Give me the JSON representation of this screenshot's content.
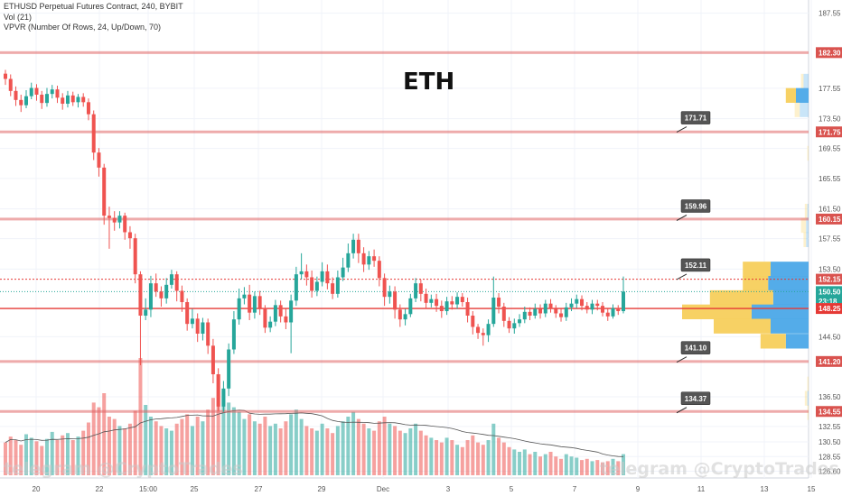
{
  "legend": {
    "symbol_line": "ETHUSD Perpetual Futures Contract, 240, BYBIT",
    "vol_line": "Vol (21)",
    "vpvr_line": "VPVR (Number Of Rows, 24, Up/Down, 70)"
  },
  "title_text": "ETH",
  "watermark": {
    "left_text": "telegram @CryptoTrades",
    "right_text": "telegram @CryptoTrades"
  },
  "colors": {
    "up": "#26a69a",
    "down": "#ef5350",
    "level_line": "#e06666",
    "current_line": "#e53935",
    "vpvr_up": "#4ba8e8",
    "vpvr_down": "#f7cf5c",
    "axis_text": "#555555",
    "grid": "#f0f3fa"
  },
  "y_axis": {
    "ticks": [
      "187.55",
      "177.55",
      "173.50",
      "169.55",
      "165.55",
      "161.50",
      "157.55",
      "153.50",
      "144.50",
      "136.50",
      "132.55",
      "130.50",
      "128.55",
      "126.60"
    ],
    "tick_values": [
      187.55,
      177.55,
      173.5,
      169.55,
      165.55,
      161.5,
      157.55,
      153.5,
      144.5,
      136.5,
      132.55,
      130.5,
      128.55,
      126.6
    ]
  },
  "x_axis": {
    "labels": [
      "20",
      "22",
      "15:00",
      "25",
      "27",
      "29",
      "Dec",
      "3",
      "5",
      "7",
      "9",
      "11",
      "13",
      "15"
    ]
  },
  "price_badges": [
    {
      "text": "182.30",
      "value": 182.3,
      "style": "level"
    },
    {
      "text": "171.75",
      "value": 171.75,
      "style": "level"
    },
    {
      "text": "160.15",
      "value": 160.15,
      "style": "level"
    },
    {
      "text": "152.15",
      "value": 152.15,
      "style": "level"
    },
    {
      "text": "150.50",
      "value": 150.5,
      "style": "current"
    },
    {
      "text": "23:18",
      "value": 149.25,
      "style": "current"
    },
    {
      "text": "148.25",
      "value": 148.25,
      "style": "red"
    },
    {
      "text": "141.20",
      "value": 141.2,
      "style": "level"
    },
    {
      "text": "134.55",
      "value": 134.55,
      "style": "level"
    }
  ],
  "callouts": [
    {
      "text": "171.71",
      "value": 171.71
    },
    {
      "text": "159.96",
      "value": 159.96
    },
    {
      "text": "152.11",
      "value": 152.11
    },
    {
      "text": "141.10",
      "value": 141.1
    },
    {
      "text": "134.37",
      "value": 134.37
    }
  ],
  "chart_data": {
    "type": "candlestick",
    "ylim": [
      125.7,
      189.3
    ],
    "horizontal_levels": [
      182.3,
      171.75,
      160.15,
      152.15,
      141.2,
      134.55
    ],
    "current_price": 150.5,
    "red_level": 148.25,
    "candles": [
      [
        179.5,
        178.8,
        180.0,
        178.0
      ],
      [
        178.8,
        177.2,
        179.4,
        176.5
      ],
      [
        177.2,
        176.0,
        177.8,
        175.2
      ],
      [
        176.0,
        175.3,
        176.7,
        174.4
      ],
      [
        175.3,
        176.5,
        177.3,
        174.9
      ],
      [
        176.5,
        177.6,
        178.3,
        176.1
      ],
      [
        177.6,
        176.7,
        178.1,
        175.9
      ],
      [
        176.7,
        175.6,
        177.2,
        174.8
      ],
      [
        175.6,
        176.8,
        177.6,
        175.1
      ],
      [
        176.8,
        177.4,
        178.0,
        176.2
      ],
      [
        177.4,
        176.3,
        177.9,
        175.6
      ],
      [
        176.3,
        175.5,
        176.9,
        174.7
      ],
      [
        175.5,
        176.6,
        177.2,
        175.0
      ],
      [
        176.6,
        175.7,
        177.1,
        175.2
      ],
      [
        175.7,
        176.4,
        176.8,
        175.0
      ],
      [
        176.4,
        175.7,
        176.9,
        175.1
      ],
      [
        175.7,
        174.1,
        176.2,
        173.3
      ],
      [
        174.1,
        169.0,
        174.6,
        168.0
      ],
      [
        169.0,
        167.0,
        169.6,
        165.8
      ],
      [
        167.0,
        160.6,
        167.5,
        159.4
      ],
      [
        160.6,
        160.3,
        161.8,
        156.2
      ],
      [
        160.3,
        159.7,
        161.2,
        158.6
      ],
      [
        159.7,
        160.6,
        161.2,
        158.9
      ],
      [
        160.6,
        158.4,
        161.0,
        157.4
      ],
      [
        158.4,
        157.6,
        159.2,
        156.2
      ],
      [
        157.6,
        152.8,
        158.2,
        151.6
      ],
      [
        152.8,
        147.3,
        153.2,
        140.7
      ],
      [
        147.3,
        148.1,
        149.6,
        146.7
      ],
      [
        148.1,
        151.6,
        152.6,
        147.1
      ],
      [
        151.6,
        150.5,
        152.9,
        149.8
      ],
      [
        150.5,
        149.6,
        151.2,
        148.5
      ],
      [
        149.6,
        151.4,
        152.3,
        148.9
      ],
      [
        151.4,
        152.8,
        153.4,
        150.9
      ],
      [
        152.8,
        150.6,
        153.2,
        149.2
      ],
      [
        150.6,
        149.1,
        151.3,
        147.8
      ],
      [
        149.1,
        146.2,
        149.6,
        145.3
      ],
      [
        146.2,
        146.9,
        148.2,
        145.6
      ],
      [
        146.9,
        144.9,
        147.6,
        143.8
      ],
      [
        144.9,
        146.4,
        147.0,
        144.0
      ],
      [
        146.4,
        143.3,
        146.9,
        142.2
      ],
      [
        143.3,
        139.5,
        144.2,
        138.3
      ],
      [
        139.5,
        135.2,
        140.3,
        134.6
      ],
      [
        135.2,
        137.6,
        138.6,
        134.5
      ],
      [
        137.6,
        142.8,
        143.6,
        136.6
      ],
      [
        142.8,
        146.8,
        147.9,
        142.2
      ],
      [
        146.8,
        149.6,
        150.9,
        146.1
      ],
      [
        149.6,
        150.1,
        151.1,
        148.8
      ],
      [
        150.1,
        147.7,
        151.4,
        146.7
      ],
      [
        147.7,
        149.9,
        150.5,
        146.9
      ],
      [
        149.9,
        148.3,
        150.6,
        147.4
      ],
      [
        148.3,
        145.7,
        148.7,
        145.0
      ],
      [
        145.7,
        146.5,
        147.2,
        145.1
      ],
      [
        146.5,
        148.7,
        149.4,
        145.9
      ],
      [
        148.7,
        147.2,
        149.3,
        146.4
      ],
      [
        147.2,
        146.4,
        148.2,
        145.5
      ],
      [
        146.4,
        149.3,
        150.1,
        142.3
      ],
      [
        149.3,
        152.8,
        153.8,
        148.6
      ],
      [
        152.8,
        153.2,
        155.6,
        152.1
      ],
      [
        153.2,
        152.4,
        154.1,
        151.3
      ],
      [
        152.4,
        150.6,
        153.3,
        149.7
      ],
      [
        150.6,
        151.8,
        152.5,
        149.9
      ],
      [
        151.8,
        153.2,
        154.4,
        151.2
      ],
      [
        153.2,
        151.6,
        154.1,
        150.8
      ],
      [
        151.6,
        150.2,
        152.4,
        149.5
      ],
      [
        150.2,
        152.4,
        153.3,
        149.7
      ],
      [
        152.4,
        153.7,
        155.0,
        151.9
      ],
      [
        153.7,
        155.6,
        156.9,
        153.1
      ],
      [
        155.6,
        157.4,
        158.2,
        154.9
      ],
      [
        157.4,
        155.6,
        158.2,
        154.3
      ],
      [
        155.6,
        154.1,
        156.4,
        153.1
      ],
      [
        154.1,
        155.2,
        155.9,
        153.4
      ],
      [
        155.2,
        154.6,
        156.1,
        153.8
      ],
      [
        154.6,
        152.3,
        155.2,
        151.2
      ],
      [
        152.3,
        149.8,
        152.9,
        148.6
      ],
      [
        149.8,
        150.5,
        151.3,
        148.9
      ],
      [
        150.5,
        148.1,
        151.2,
        146.9
      ],
      [
        148.1,
        146.8,
        148.8,
        145.8
      ],
      [
        146.8,
        147.5,
        148.2,
        146.0
      ],
      [
        147.5,
        149.6,
        150.2,
        147.1
      ],
      [
        149.6,
        151.6,
        152.3,
        149.1
      ],
      [
        151.6,
        150.2,
        152.1,
        149.2
      ],
      [
        150.2,
        149.0,
        150.9,
        148.2
      ],
      [
        149.0,
        149.5,
        150.1,
        148.4
      ],
      [
        149.5,
        148.6,
        150.2,
        147.8
      ],
      [
        148.6,
        147.9,
        149.3,
        147.0
      ],
      [
        147.9,
        149.2,
        149.8,
        147.4
      ],
      [
        149.2,
        148.8,
        149.9,
        148.1
      ],
      [
        148.8,
        149.8,
        150.4,
        148.2
      ],
      [
        149.8,
        149.1,
        150.3,
        148.5
      ],
      [
        149.1,
        147.3,
        149.7,
        146.4
      ],
      [
        147.3,
        145.8,
        147.9,
        144.8
      ],
      [
        145.8,
        145.0,
        146.2,
        144.2
      ],
      [
        145.0,
        144.7,
        145.6,
        143.3
      ],
      [
        144.7,
        146.2,
        146.8,
        143.8
      ],
      [
        146.2,
        149.7,
        152.5,
        145.8
      ],
      [
        149.7,
        148.5,
        150.3,
        147.6
      ],
      [
        148.5,
        146.6,
        149.0,
        145.8
      ],
      [
        146.6,
        145.6,
        147.1,
        145.0
      ],
      [
        145.6,
        146.3,
        146.9,
        144.9
      ],
      [
        146.3,
        146.8,
        147.5,
        145.8
      ],
      [
        146.8,
        147.8,
        148.5,
        146.3
      ],
      [
        147.8,
        147.3,
        148.4,
        146.7
      ],
      [
        147.3,
        148.2,
        148.9,
        146.9
      ],
      [
        148.2,
        147.6,
        148.8,
        146.9
      ],
      [
        147.6,
        148.9,
        149.4,
        147.1
      ],
      [
        148.9,
        148.2,
        149.5,
        147.7
      ],
      [
        148.2,
        147.6,
        148.7,
        147.0
      ],
      [
        147.6,
        147.1,
        148.2,
        146.5
      ],
      [
        147.1,
        148.4,
        149.0,
        146.6
      ],
      [
        148.4,
        148.9,
        149.6,
        147.9
      ],
      [
        148.9,
        149.5,
        150.1,
        148.3
      ],
      [
        149.5,
        148.6,
        150.0,
        148.0
      ],
      [
        148.6,
        148.1,
        149.1,
        147.6
      ],
      [
        148.1,
        148.9,
        149.4,
        147.5
      ],
      [
        148.9,
        148.6,
        149.4,
        148.0
      ],
      [
        148.6,
        147.7,
        149.1,
        147.2
      ],
      [
        147.7,
        147.2,
        148.2,
        146.6
      ],
      [
        147.2,
        148.3,
        148.8,
        146.9
      ],
      [
        148.3,
        147.9,
        148.7,
        147.4
      ],
      [
        147.9,
        150.5,
        152.5,
        147.6
      ]
    ],
    "volume": [
      0.28,
      0.33,
      0.3,
      0.26,
      0.35,
      0.32,
      0.29,
      0.25,
      0.31,
      0.37,
      0.3,
      0.34,
      0.36,
      0.3,
      0.33,
      0.38,
      0.45,
      0.62,
      0.58,
      0.7,
      0.5,
      0.48,
      0.42,
      0.4,
      0.44,
      0.55,
      1.0,
      0.6,
      0.5,
      0.46,
      0.42,
      0.4,
      0.38,
      0.44,
      0.48,
      0.52,
      0.42,
      0.5,
      0.46,
      0.56,
      0.66,
      0.86,
      0.72,
      0.62,
      0.58,
      0.54,
      0.48,
      0.52,
      0.46,
      0.44,
      0.5,
      0.42,
      0.44,
      0.4,
      0.46,
      0.52,
      0.56,
      0.48,
      0.42,
      0.4,
      0.38,
      0.44,
      0.4,
      0.36,
      0.42,
      0.46,
      0.5,
      0.54,
      0.48,
      0.44,
      0.4,
      0.38,
      0.46,
      0.5,
      0.44,
      0.42,
      0.38,
      0.36,
      0.4,
      0.44,
      0.38,
      0.34,
      0.32,
      0.3,
      0.28,
      0.32,
      0.3,
      0.26,
      0.24,
      0.3,
      0.34,
      0.28,
      0.26,
      0.3,
      0.44,
      0.32,
      0.28,
      0.24,
      0.22,
      0.2,
      0.22,
      0.18,
      0.2,
      0.16,
      0.18,
      0.2,
      0.16,
      0.14,
      0.18,
      0.16,
      0.15,
      0.13,
      0.14,
      0.12,
      0.13,
      0.11,
      0.12,
      0.14,
      0.12,
      0.18
    ],
    "vpvr": [
      {
        "price": 178.5,
        "up": 0.04,
        "down": 0.02
      },
      {
        "price": 176.6,
        "up": 0.1,
        "down": 0.08
      },
      {
        "price": 174.7,
        "up": 0.07,
        "down": 0.04
      },
      {
        "price": 168.9,
        "up": 0.0,
        "down": 0.01
      },
      {
        "price": 161.2,
        "up": 0.01,
        "down": 0.02
      },
      {
        "price": 159.3,
        "up": 0.02,
        "down": 0.04
      },
      {
        "price": 157.4,
        "up": 0.02,
        "down": 0.02
      },
      {
        "price": 153.5,
        "up": 0.3,
        "down": 0.22
      },
      {
        "price": 151.6,
        "up": 0.32,
        "down": 0.2
      },
      {
        "price": 149.7,
        "up": 0.28,
        "down": 0.5
      },
      {
        "price": 147.8,
        "up": 0.45,
        "down": 0.55
      },
      {
        "price": 145.9,
        "up": 0.3,
        "down": 0.45
      },
      {
        "price": 143.9,
        "up": 0.18,
        "down": 0.2
      },
      {
        "price": 138.2,
        "up": 0.0,
        "down": 0.01
      },
      {
        "price": 136.3,
        "up": 0.01,
        "down": 0.02
      },
      {
        "price": 134.4,
        "up": 0.0,
        "down": 0.01
      }
    ]
  }
}
